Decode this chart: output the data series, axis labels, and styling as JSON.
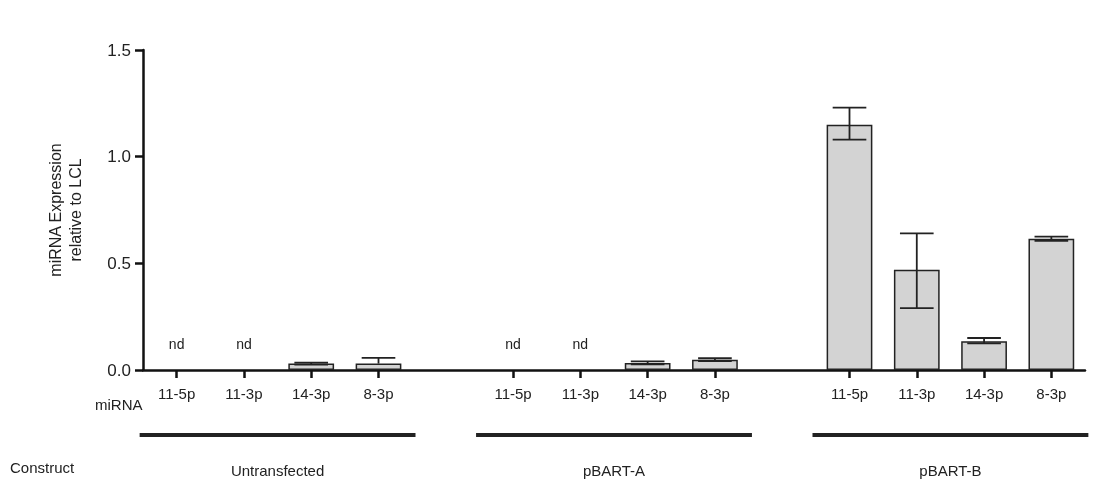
{
  "chart_data": {
    "type": "bar",
    "ylabel": "miRNA Expression\nrelative to LCL",
    "categories": [
      "11-5p",
      "11-3p",
      "14-3p",
      "8-3p",
      null,
      "11-5p",
      "11-3p",
      "14-3p",
      "8-3p",
      null,
      "11-5p",
      "11-3p",
      "14-3p",
      "8-3p"
    ],
    "values": [
      null,
      null,
      0.03,
      0.03,
      null,
      null,
      null,
      0.033,
      0.048,
      null,
      1.15,
      0.47,
      0.135,
      0.615
    ],
    "errors": [
      null,
      null,
      [
        0.025,
        0.035
      ],
      [
        0.03,
        0.057
      ],
      null,
      null,
      null,
      [
        0.027,
        0.04
      ],
      [
        0.042,
        0.055
      ],
      null,
      [
        1.08,
        1.23
      ],
      [
        0.29,
        0.64
      ],
      [
        0.125,
        0.15
      ],
      [
        0.605,
        0.625
      ]
    ],
    "value_labels": [
      "nd",
      "nd",
      null,
      null,
      null,
      "nd",
      "nd",
      null,
      null,
      null,
      null,
      null,
      null,
      null
    ],
    "color": "#d3d3d3",
    "ylim": [
      0,
      1.5
    ],
    "yticks": [
      {
        "value": 0,
        "label": "0.0"
      },
      {
        "value": 0.5,
        "label": "0.5"
      },
      {
        "value": 1,
        "label": "1.0"
      },
      1.5
    ],
    "grid": false,
    "annotations": [
      "miRNA",
      "Construct",
      "Untransfected",
      "pBART-A",
      "pBART-B"
    ]
  }
}
